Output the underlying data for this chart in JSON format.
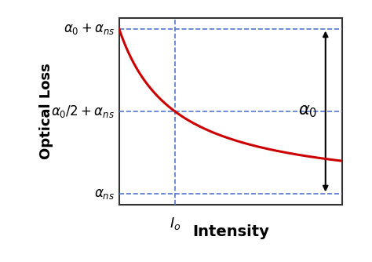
{
  "xlabel": "Intensity",
  "ylabel": "Optical Loss",
  "curve_color": "#cc0000",
  "dashed_color": "#5577cc",
  "arrow_color": "#000000",
  "alpha_ns": 0.1,
  "alpha_0": 0.8,
  "I_sat": 1.0,
  "x_min": 0.0,
  "x_max": 4.0,
  "y_min": 0.0,
  "y_max": 1.0,
  "background_color": "#ffffff",
  "ylabel_fontsize": 13,
  "xlabel_fontsize": 14,
  "annotation_fontsize": 12,
  "alpha0_label_fontsize": 14
}
